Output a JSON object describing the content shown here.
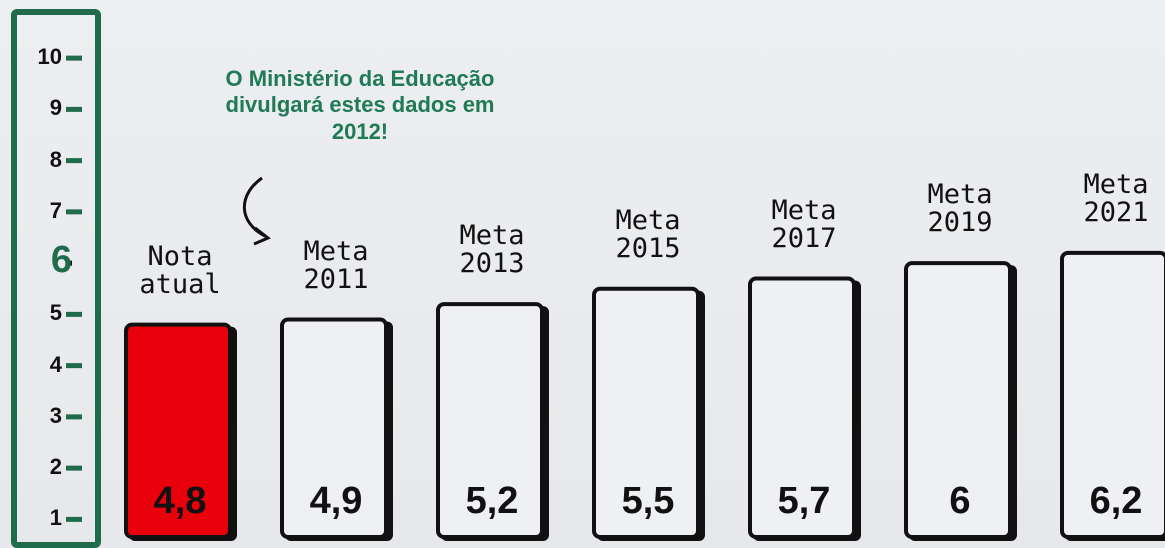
{
  "chart_data": {
    "type": "bar",
    "annotation": "O Ministério da Educação divulgará estes dados em 2012!",
    "categories": [
      "Nota atual",
      "Meta 2011",
      "Meta 2013",
      "Meta 2015",
      "Meta 2017",
      "Meta 2019",
      "Meta 2021"
    ],
    "values": [
      4.8,
      4.9,
      5.2,
      5.5,
      5.7,
      6,
      6.2
    ],
    "value_labels": [
      "4,8",
      "4,9",
      "5,2",
      "5,5",
      "5,7",
      "6",
      "6,2"
    ],
    "colors": [
      "#e8000b",
      "#eef0f3",
      "#eef0f3",
      "#eef0f3",
      "#eef0f3",
      "#eef0f3",
      "#eef0f3"
    ],
    "axis_color": "#1f6b4a",
    "highlight_ytick": 6,
    "ylim": [
      0.5,
      10.9
    ],
    "yticks": [
      1,
      2,
      3,
      4,
      5,
      6,
      7,
      8,
      9,
      10
    ]
  }
}
